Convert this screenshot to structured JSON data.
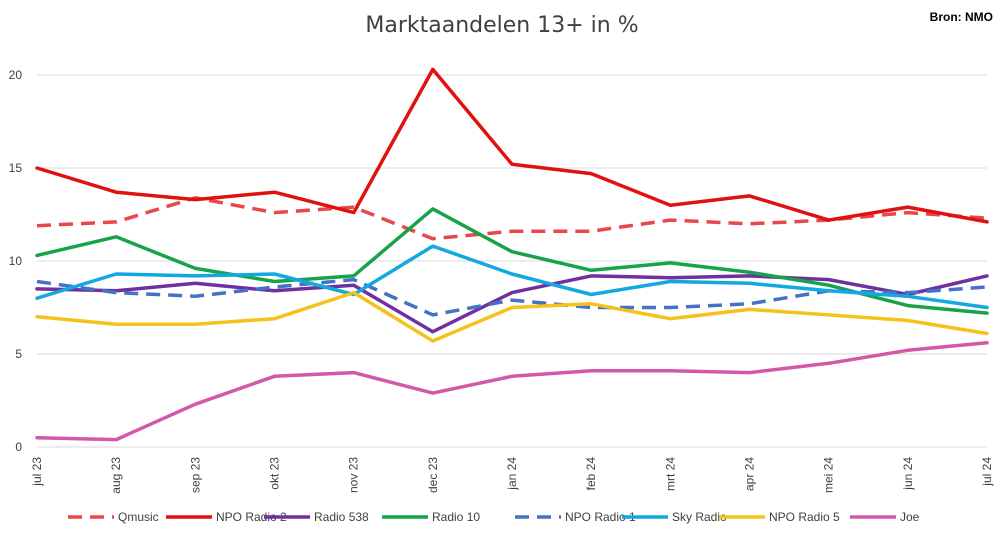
{
  "chart_data": {
    "type": "line",
    "title": "Marktaandelen 13+ in %",
    "source": "Bron: NMO",
    "xlabel": "",
    "ylabel": "",
    "ylim": [
      0,
      20
    ],
    "yticks": [
      "0",
      "5",
      "10",
      "15",
      "20"
    ],
    "grid": true,
    "legend": "bottom",
    "categories": [
      "jul 23",
      "aug 23",
      "sep 23",
      "okt 23",
      "nov 23",
      "dec 23",
      "jan 24",
      "feb 24",
      "mrt 24",
      "apr 24",
      "mei 24",
      "jun 24",
      "jul 24"
    ],
    "series": [
      {
        "name": "Qmusic",
        "color": "#e8474b",
        "dashed": true,
        "values": [
          11.9,
          12.1,
          13.4,
          12.6,
          12.9,
          11.2,
          11.6,
          11.6,
          12.2,
          12.0,
          12.2,
          12.6,
          12.3
        ]
      },
      {
        "name": "NPO Radio 2",
        "color": "#e0120f",
        "dashed": false,
        "values": [
          15.0,
          13.7,
          13.3,
          13.7,
          12.6,
          20.3,
          15.2,
          14.7,
          13.0,
          13.5,
          12.2,
          12.9,
          12.1
        ]
      },
      {
        "name": "Radio 538",
        "color": "#7030a0",
        "dashed": false,
        "values": [
          8.5,
          8.4,
          8.8,
          8.4,
          8.7,
          6.2,
          8.3,
          9.2,
          9.1,
          9.2,
          9.0,
          8.2,
          9.2
        ]
      },
      {
        "name": "Radio 10",
        "color": "#17a34a",
        "dashed": false,
        "values": [
          10.3,
          11.3,
          9.6,
          8.9,
          9.2,
          12.8,
          10.5,
          9.5,
          9.9,
          9.4,
          8.7,
          7.6,
          7.2
        ]
      },
      {
        "name": "NPO Radio 1",
        "color": "#4472c4",
        "dashed": true,
        "values": [
          8.9,
          8.3,
          8.1,
          8.6,
          9.0,
          7.1,
          7.9,
          7.5,
          7.5,
          7.7,
          8.4,
          8.3,
          8.6
        ]
      },
      {
        "name": "Sky Radio",
        "color": "#12a8e0",
        "dashed": false,
        "values": [
          8.0,
          9.3,
          9.2,
          9.3,
          8.2,
          10.8,
          9.3,
          8.2,
          8.9,
          8.8,
          8.4,
          8.1,
          7.5
        ]
      },
      {
        "name": "NPO Radio 5",
        "color": "#f5c21b",
        "dashed": false,
        "values": [
          7.0,
          6.6,
          6.6,
          6.9,
          8.3,
          5.7,
          7.5,
          7.7,
          6.9,
          7.4,
          7.1,
          6.8,
          6.1
        ]
      },
      {
        "name": "Joe",
        "color": "#d458a8",
        "dashed": false,
        "values": [
          0.5,
          0.4,
          2.3,
          3.8,
          4.0,
          2.9,
          3.8,
          4.1,
          4.1,
          4.0,
          4.5,
          5.2,
          5.6
        ]
      }
    ]
  }
}
